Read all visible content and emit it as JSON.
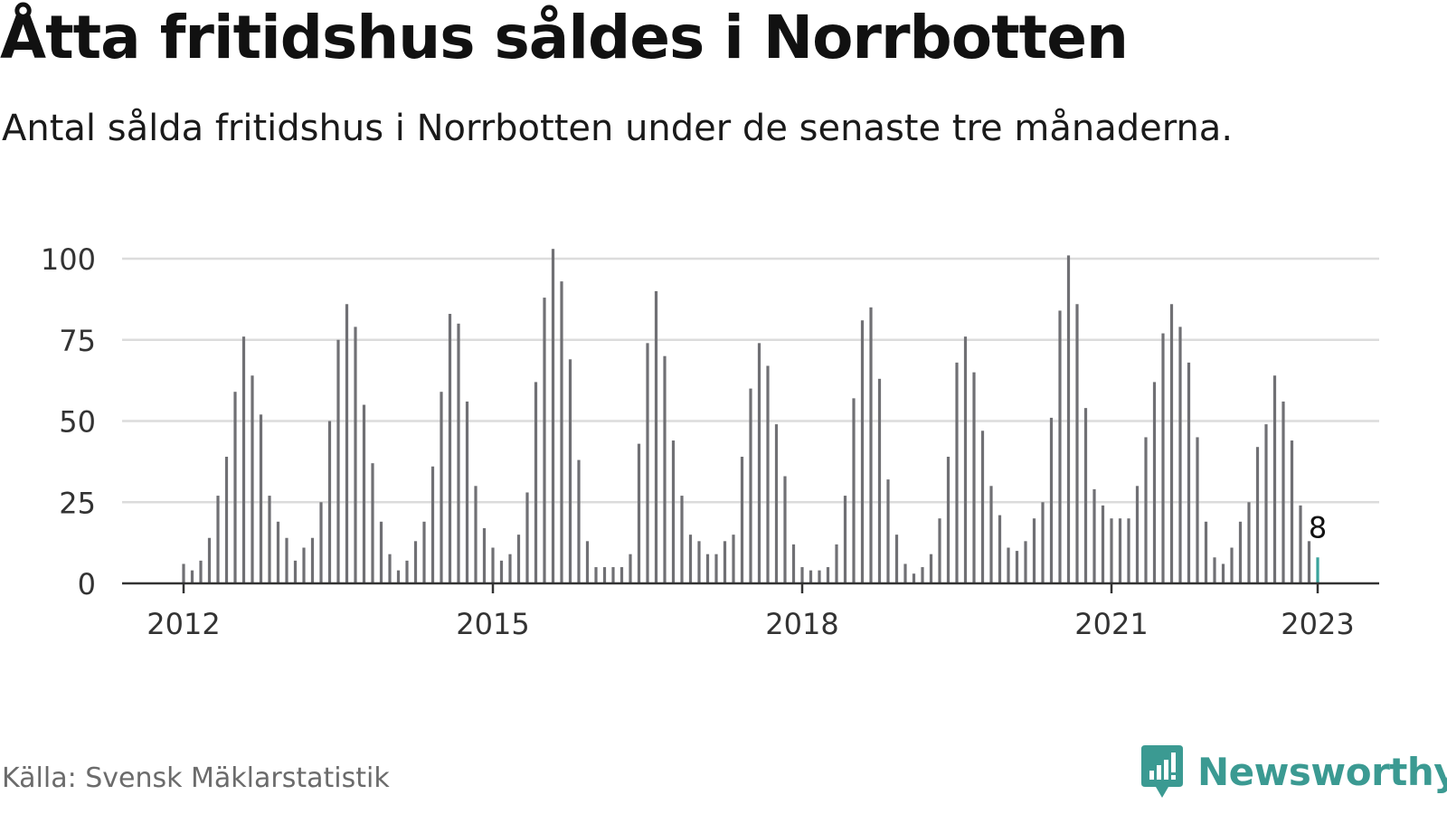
{
  "title": "Åtta fritidshus såldes i Norrbotten",
  "subtitle": "Antal sålda fritidshus i Norrbotten under de senaste tre månaderna.",
  "source": "Källa: Svensk Mäklarstatistik",
  "brand": {
    "name": "Newsworthy",
    "icon": "newsworthy-logo-icon",
    "color": "#3b9a92"
  },
  "colors": {
    "bar": "#707074",
    "highlight": "#3aa39c",
    "grid": "#dcdcdc",
    "axis": "#333333"
  },
  "chart_data": {
    "type": "bar",
    "ylim": [
      0,
      100
    ],
    "yticks": [
      0,
      25,
      50,
      75,
      100
    ],
    "xticks": [
      "2012",
      "2015",
      "2018",
      "2021",
      "2023"
    ],
    "grid": true,
    "annotation": "8",
    "series": [
      {
        "values": [
          6,
          4,
          7,
          14,
          27,
          39,
          59,
          76,
          64,
          52,
          27,
          19,
          14,
          7,
          11,
          14,
          25,
          50,
          75,
          86,
          79,
          55,
          37,
          19,
          9,
          4,
          7,
          13,
          19,
          36,
          59,
          83,
          80,
          56,
          30,
          17,
          11,
          7,
          9,
          15,
          28,
          62,
          88,
          103,
          93,
          69,
          38,
          13,
          5,
          5,
          5,
          5,
          9,
          43,
          74,
          90,
          70,
          44,
          27,
          15,
          13,
          9,
          9,
          13,
          15,
          39,
          60,
          74,
          67,
          49,
          33,
          12,
          5,
          4,
          4,
          5,
          12,
          27,
          57,
          81,
          85,
          63,
          32,
          15,
          6,
          3,
          5,
          9,
          20,
          39,
          68,
          76,
          65,
          47,
          30,
          21,
          11,
          10,
          13,
          20,
          25,
          51,
          84,
          101,
          86,
          54,
          29,
          24,
          20,
          20,
          20,
          30,
          45,
          62,
          77,
          86,
          79,
          68,
          45,
          19,
          8,
          6,
          11,
          19,
          25,
          42,
          49,
          64,
          56,
          44,
          24,
          13,
          8
        ]
      }
    ]
  }
}
